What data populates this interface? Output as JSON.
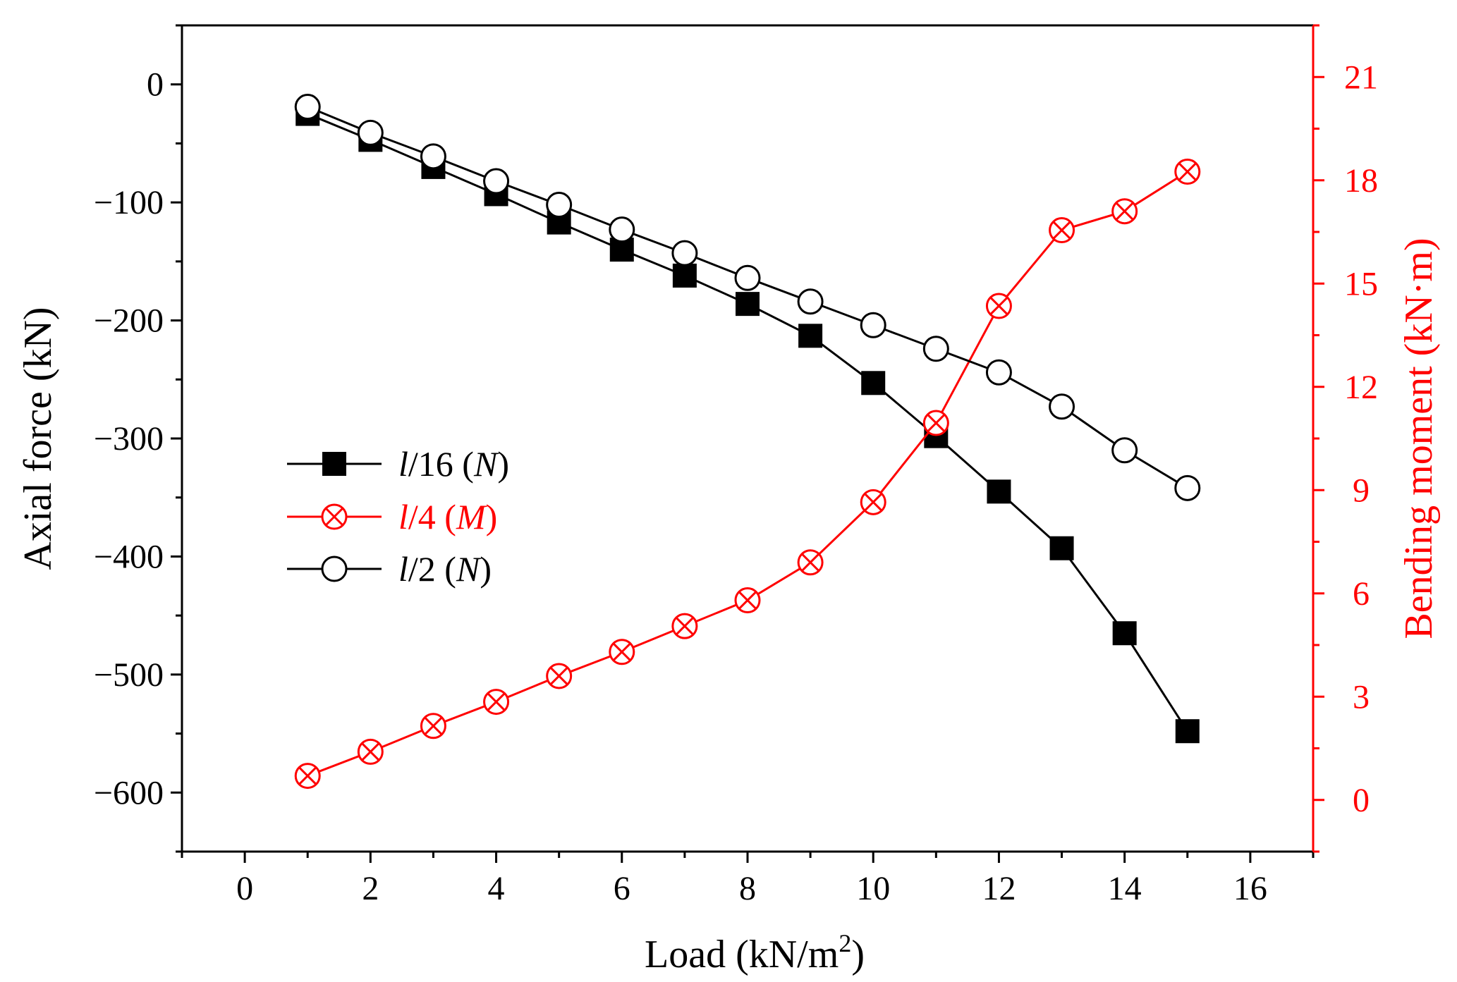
{
  "chart_data": {
    "type": "line",
    "xlabel": "Load (kN/m",
    "xlabel_sup": "2",
    "xlabel_end": ")",
    "ylabel_left": "Axial force (kN)",
    "ylabel_right": "Bending moment (kN·m)",
    "xlim": [
      -1,
      17
    ],
    "ylim_left": [
      -650,
      50
    ],
    "ylim_right": [
      -1.5,
      22.5
    ],
    "x_ticks": [
      0,
      2,
      4,
      6,
      8,
      10,
      12,
      14,
      16
    ],
    "y_left_ticks": [
      0,
      -100,
      -200,
      -300,
      -400,
      -500,
      -600
    ],
    "y_right_ticks": [
      0,
      3,
      6,
      9,
      12,
      15,
      18,
      21
    ],
    "legend_position": "center-left",
    "series": [
      {
        "name": "l/16 (N)",
        "legend_italic": "l",
        "legend_mid": "/16 (",
        "legend_var": "N",
        "legend_end": ")",
        "axis": "left",
        "marker": "filled-square",
        "color": "#000000",
        "x": [
          1,
          2,
          3,
          4,
          5,
          6,
          7,
          8,
          9,
          10,
          11,
          12,
          13,
          14,
          15
        ],
        "y": [
          -25,
          -47,
          -70,
          -93,
          -117,
          -140,
          -162,
          -186,
          -213,
          -253,
          -298,
          -345,
          -393,
          -465,
          -548
        ]
      },
      {
        "name": "l/4 (M)",
        "legend_italic": "l",
        "legend_mid": "/4  (",
        "legend_var": "M",
        "legend_end": ")",
        "axis": "right",
        "marker": "circle-x",
        "color": "#ff0000",
        "x": [
          1,
          2,
          3,
          4,
          5,
          6,
          7,
          8,
          9,
          10,
          11,
          12,
          13,
          14,
          15
        ],
        "y": [
          0.7,
          1.4,
          2.15,
          2.85,
          3.6,
          4.3,
          5.05,
          5.8,
          6.9,
          8.65,
          10.95,
          14.35,
          16.55,
          17.1,
          18.25
        ]
      },
      {
        "name": "l/2 (N)",
        "legend_italic": "l",
        "legend_mid": "/2  (",
        "legend_var": "N",
        "legend_end": ")",
        "axis": "left",
        "marker": "open-circle",
        "color": "#000000",
        "x": [
          1,
          2,
          3,
          4,
          5,
          6,
          7,
          8,
          9,
          10,
          11,
          12,
          13,
          14,
          15
        ],
        "y": [
          -19,
          -41,
          -61,
          -82,
          -102,
          -123,
          -143,
          -164,
          -184,
          -204,
          -224,
          -244,
          -273,
          -310,
          -342
        ]
      }
    ]
  }
}
